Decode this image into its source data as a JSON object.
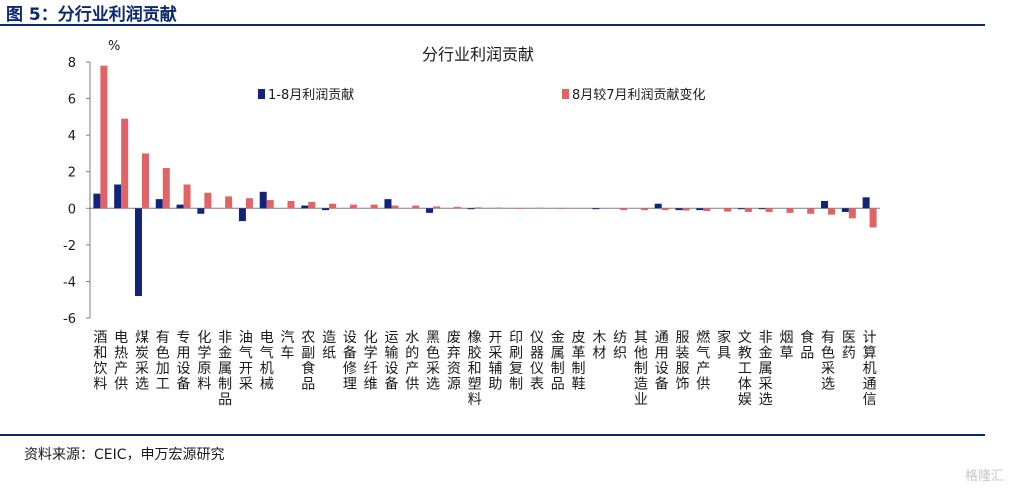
{
  "figure_title": "图 5：分行业利润贡献",
  "source": "资料来源：CEIC，申万宏源研究",
  "watermark": "格隆汇",
  "colors": {
    "series1": "#12247a",
    "series2": "#e06466",
    "rule": "#0b2a6e"
  },
  "chart_data": {
    "type": "bar",
    "title": "分行业利润贡献",
    "ylabel": "%",
    "ylim": [
      -6,
      8
    ],
    "yticks": [
      8,
      6,
      4,
      2,
      0,
      -2,
      -4,
      -6
    ],
    "legend_position": "top",
    "categories": [
      "酒和饮料",
      "电热产供",
      "煤炭采选",
      "有色加工",
      "专用设备",
      "化学原料",
      "非金属制品",
      "油气开采",
      "电气机械",
      "汽车",
      "农副食品",
      "造纸",
      "设备修理",
      "化学纤维",
      "运输设备",
      "水的产供",
      "黑色采选",
      "废弃资源",
      "橡胶和塑料",
      "开采辅助",
      "印刷复制",
      "仪器仪表",
      "金属制品",
      "皮革制鞋",
      "木材",
      "纺织",
      "其他制造业",
      "通用设备",
      "服装服饰",
      "燃气产供",
      "家具",
      "文教工体娱",
      "非金属采选",
      "烟草",
      "食品",
      "有色采选",
      "医药",
      "计算机通信"
    ],
    "series": [
      {
        "name": "1-8月利润贡献",
        "values": [
          0.8,
          1.3,
          -4.8,
          0.5,
          0.2,
          -0.3,
          0,
          -0.7,
          0.9,
          0,
          0.15,
          -0.1,
          0,
          0,
          0.5,
          0,
          -0.25,
          0,
          -0.05,
          0,
          0,
          0,
          0,
          0,
          -0.05,
          0,
          0,
          0.25,
          -0.1,
          -0.1,
          0,
          -0.05,
          -0.05,
          0,
          0,
          0.4,
          -0.2,
          0.6
        ]
      },
      {
        "name": "8月较7月利润贡献变化",
        "values": [
          7.8,
          4.9,
          3.0,
          2.2,
          1.3,
          0.85,
          0.65,
          0.55,
          0.45,
          0.4,
          0.35,
          0.25,
          0.2,
          0.2,
          0.15,
          0.15,
          0.1,
          0.08,
          0.05,
          0.04,
          0.02,
          0.03,
          0.02,
          0.0,
          0.0,
          -0.1,
          -0.1,
          -0.1,
          -0.12,
          -0.15,
          -0.18,
          -0.2,
          -0.2,
          -0.25,
          -0.3,
          -0.35,
          -0.55,
          -1.05
        ]
      }
    ]
  }
}
